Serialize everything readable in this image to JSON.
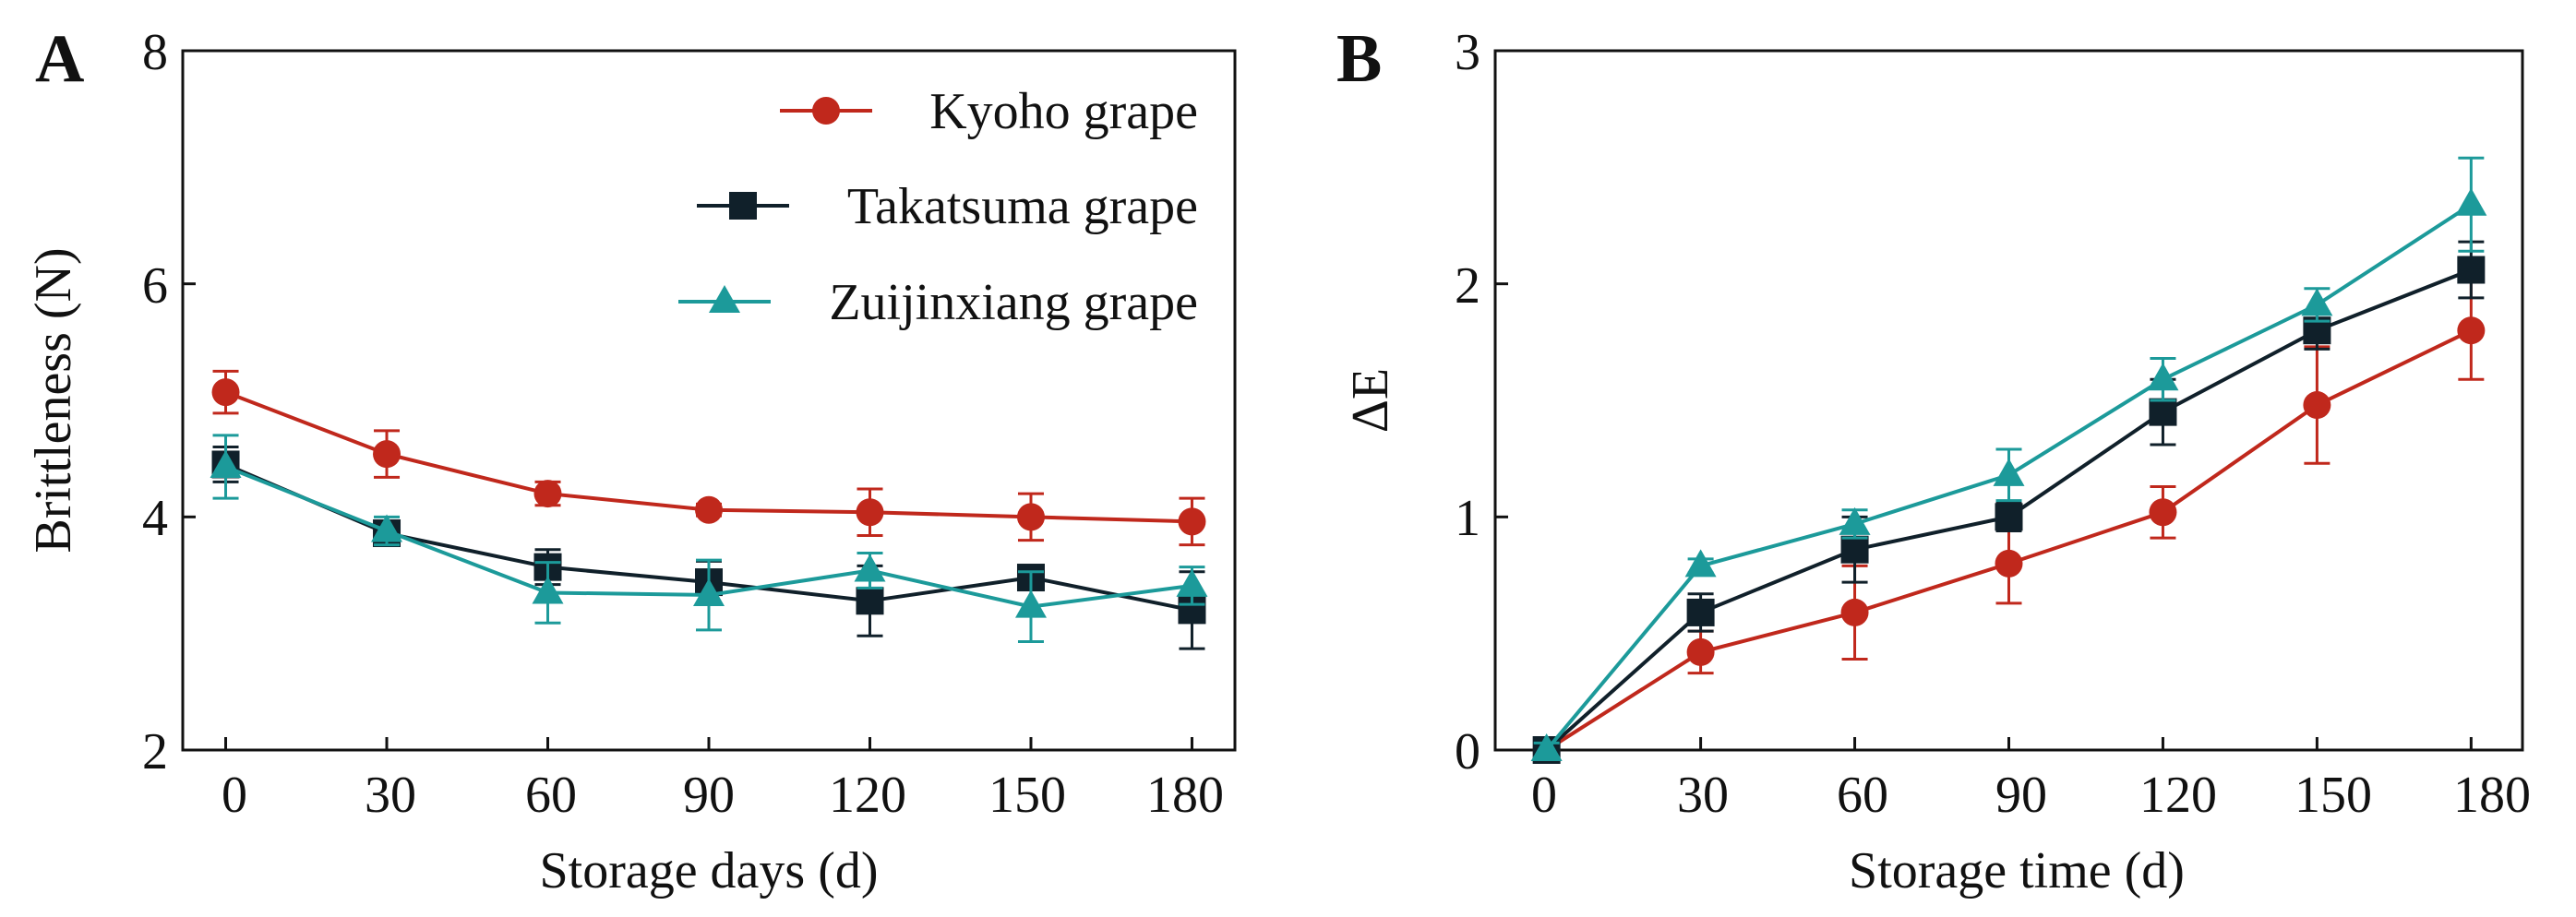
{
  "chart_data": [
    {
      "type": "line",
      "panel_label": "A",
      "title": "",
      "xlabel": "Storage days (d)",
      "ylabel": "Brittleness (N)",
      "x": [
        0,
        30,
        60,
        90,
        120,
        150,
        180
      ],
      "x_ticks": [
        "0",
        "30",
        "60",
        "90",
        "120",
        "150",
        "180"
      ],
      "y_ticks": [
        "2",
        "4",
        "6",
        "8"
      ],
      "xlim": [
        -8,
        188
      ],
      "ylim": [
        2,
        8
      ],
      "legend_position": "top-right",
      "series": [
        {
          "name": "Kyoho grape",
          "color": "#c0281c",
          "marker": "circle",
          "values": [
            5.07,
            4.54,
            4.2,
            4.06,
            4.04,
            4.0,
            3.96
          ],
          "errors": [
            0.18,
            0.2,
            0.1,
            0.05,
            0.2,
            0.2,
            0.2
          ]
        },
        {
          "name": "Takatsuma grape",
          "color": "#10202a",
          "marker": "square",
          "values": [
            4.45,
            3.86,
            3.57,
            3.44,
            3.28,
            3.48,
            3.2
          ],
          "errors": [
            0.15,
            0.07,
            0.15,
            0.18,
            0.3,
            0.1,
            0.33
          ]
        },
        {
          "name": "Zuijinxiang grape",
          "color": "#1c9a9a",
          "marker": "triangle",
          "values": [
            4.43,
            3.88,
            3.35,
            3.33,
            3.54,
            3.23,
            3.41
          ],
          "errors": [
            0.27,
            0.12,
            0.26,
            0.3,
            0.15,
            0.3,
            0.16
          ]
        }
      ]
    },
    {
      "type": "line",
      "panel_label": "B",
      "title": "",
      "xlabel": "Storage time (d)",
      "ylabel": "ΔE",
      "x": [
        0,
        30,
        60,
        90,
        120,
        150,
        180
      ],
      "x_ticks": [
        "0",
        "30",
        "60",
        "90",
        "120",
        "150",
        "180"
      ],
      "y_ticks": [
        "0",
        "1",
        "2",
        "3"
      ],
      "xlim": [
        -10,
        190
      ],
      "ylim": [
        0,
        3
      ],
      "series": [
        {
          "name": "Kyoho grape",
          "color": "#c0281c",
          "marker": "circle",
          "values": [
            0.0,
            0.42,
            0.59,
            0.8,
            1.02,
            1.48,
            1.8
          ],
          "errors": [
            0.03,
            0.09,
            0.2,
            0.17,
            0.11,
            0.25,
            0.21
          ]
        },
        {
          "name": "Takatsuma grape",
          "color": "#10202a",
          "marker": "square",
          "values": [
            0.0,
            0.59,
            0.86,
            1.0,
            1.45,
            1.8,
            2.06
          ],
          "errors": [
            0.03,
            0.08,
            0.14,
            0.06,
            0.14,
            0.08,
            0.12
          ]
        },
        {
          "name": "Zuijinxiang grape",
          "color": "#1c9a9a",
          "marker": "triangle",
          "values": [
            0.0,
            0.79,
            0.97,
            1.18,
            1.59,
            1.91,
            2.34
          ],
          "errors": [
            0.03,
            0.03,
            0.06,
            0.11,
            0.09,
            0.07,
            0.2
          ]
        }
      ]
    }
  ]
}
